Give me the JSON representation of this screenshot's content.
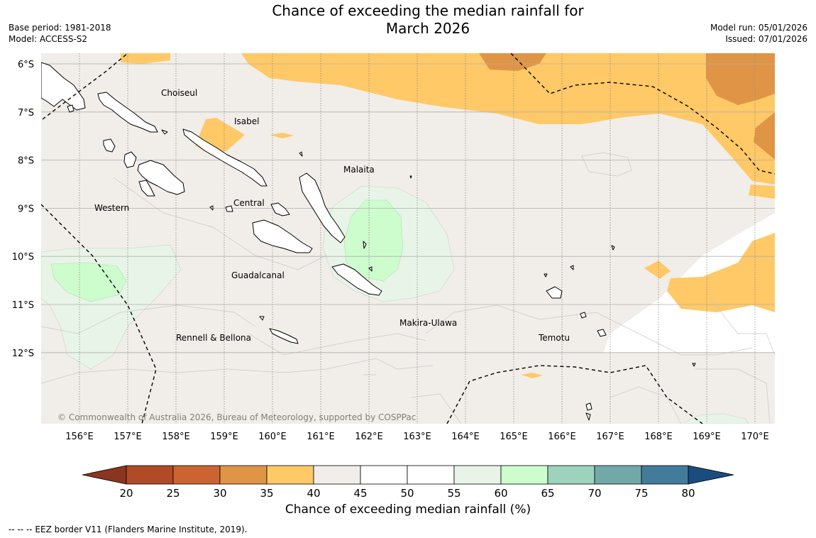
{
  "title": {
    "line1": "Chance of exceeding the median rainfall for",
    "line2": "March 2026"
  },
  "meta_left": {
    "base_period": "Base period: 1981-2018",
    "model": "Model: ACCESS-S2"
  },
  "meta_right": {
    "model_run": "Model run: 05/01/2026",
    "issued": "Issued: 07/01/2026"
  },
  "copyright": "© Commonwealth of Australia 2026, Bureau of Meteorology, supported by COSPPac",
  "lat_labels": [
    "6°S",
    "7°S",
    "8°S",
    "9°S",
    "10°S",
    "11°S",
    "12°S"
  ],
  "lon_labels": [
    "156°E",
    "157°E",
    "158°E",
    "159°E",
    "160°E",
    "161°E",
    "162°E",
    "163°E",
    "164°E",
    "165°E",
    "166°E",
    "167°E",
    "168°E",
    "169°E",
    "170°E"
  ],
  "place_labels": [
    "Choiseul",
    "Isabel",
    "Malaita",
    "Central",
    "Western",
    "Guadalcanal",
    "Makira-Ulawa",
    "Rennell & Bellona",
    "Temotu"
  ],
  "colorbar": {
    "title": "Chance of exceeding median rainfall (%)",
    "ticks": [
      "20",
      "25",
      "30",
      "35",
      "40",
      "45",
      "50",
      "55",
      "60",
      "65",
      "70",
      "75",
      "80"
    ],
    "colors": [
      "#8a3520",
      "#b14a26",
      "#cc6432",
      "#e09546",
      "#fec966",
      "#f1ede8",
      "#ffffff",
      "#ffffff",
      "#e8f4e8",
      "#cdfccd",
      "#9dd2bd",
      "#73a8a8",
      "#437b9b",
      "#1a4c80"
    ]
  },
  "legend_note": "--  --  -- EEZ border V11 (Flanders Marine Institute, 2019)."
}
